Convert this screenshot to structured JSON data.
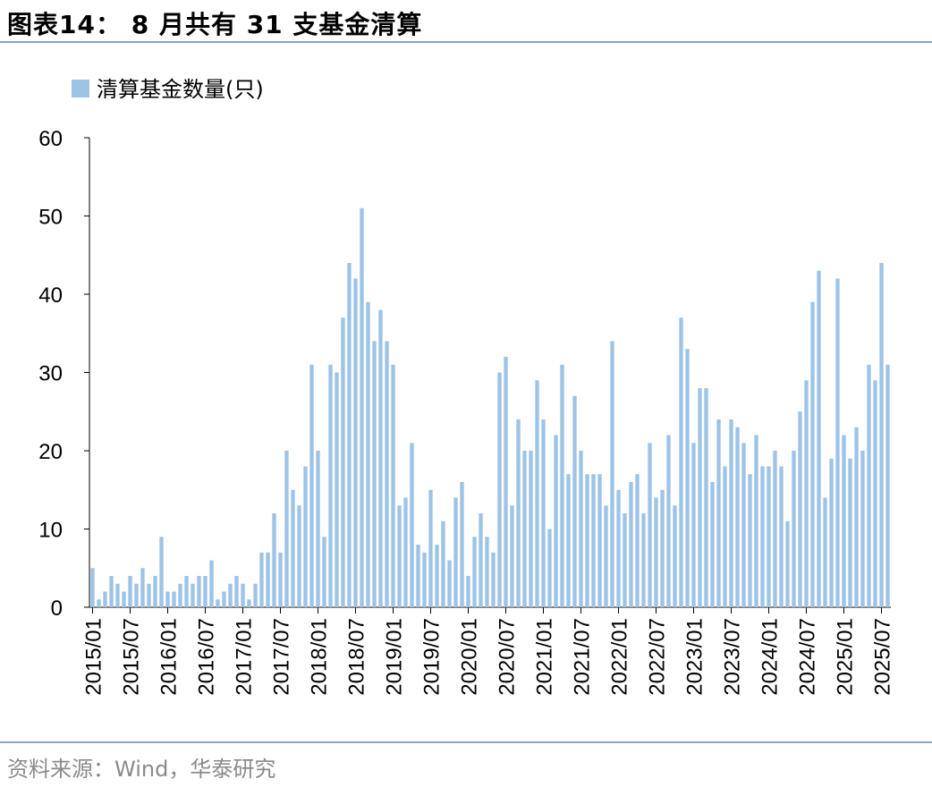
{
  "header": {
    "title": "图表14： 8 月共有 31 支基金清算"
  },
  "footer": {
    "source": "资料来源：Wind，华泰研究"
  },
  "colors": {
    "bar": "#9dc3e6",
    "rule": "#8ea2c4",
    "axis": "#000000"
  },
  "chart_data": {
    "type": "bar",
    "title": "",
    "xlabel": "",
    "ylabel": "",
    "ylim": [
      0,
      60
    ],
    "yticks": [
      "0",
      "10",
      "20",
      "30",
      "40",
      "50",
      "60"
    ],
    "legend": {
      "label": "清算基金数量(只)",
      "position": "top-left"
    },
    "xtick_labels": [
      "2015/01",
      "2015/07",
      "2016/01",
      "2016/07",
      "2017/01",
      "2017/07",
      "2018/01",
      "2018/07",
      "2019/01",
      "2019/07",
      "2020/01",
      "2020/07",
      "2021/01",
      "2021/07",
      "2022/01",
      "2022/07",
      "2023/01",
      "2023/07",
      "2024/01",
      "2024/07",
      "2025/01",
      "2025/07"
    ],
    "series": [
      {
        "name": "清算基金数量(只)",
        "values": [
          5,
          1,
          2,
          4,
          3,
          2,
          4,
          3,
          5,
          3,
          4,
          9,
          2,
          2,
          3,
          4,
          3,
          4,
          4,
          6,
          1,
          2,
          3,
          4,
          3,
          1,
          3,
          7,
          7,
          12,
          7,
          20,
          15,
          13,
          18,
          31,
          20,
          9,
          31,
          30,
          37,
          44,
          42,
          51,
          39,
          34,
          38,
          34,
          31,
          13,
          14,
          21,
          8,
          7,
          15,
          8,
          11,
          6,
          14,
          16,
          4,
          9,
          12,
          9,
          7,
          30,
          32,
          13,
          24,
          20,
          20,
          29,
          24,
          10,
          22,
          31,
          17,
          27,
          20,
          17,
          17,
          17,
          13,
          34,
          15,
          12,
          16,
          17,
          12,
          21,
          14,
          15,
          22,
          13,
          37,
          33,
          21,
          28,
          28,
          16,
          24,
          18,
          24,
          23,
          21,
          17,
          22,
          18,
          18,
          20,
          18,
          11,
          20,
          25,
          29,
          39,
          43,
          14,
          19,
          42,
          22,
          19,
          23,
          20,
          31,
          29,
          44,
          31
        ]
      }
    ]
  }
}
